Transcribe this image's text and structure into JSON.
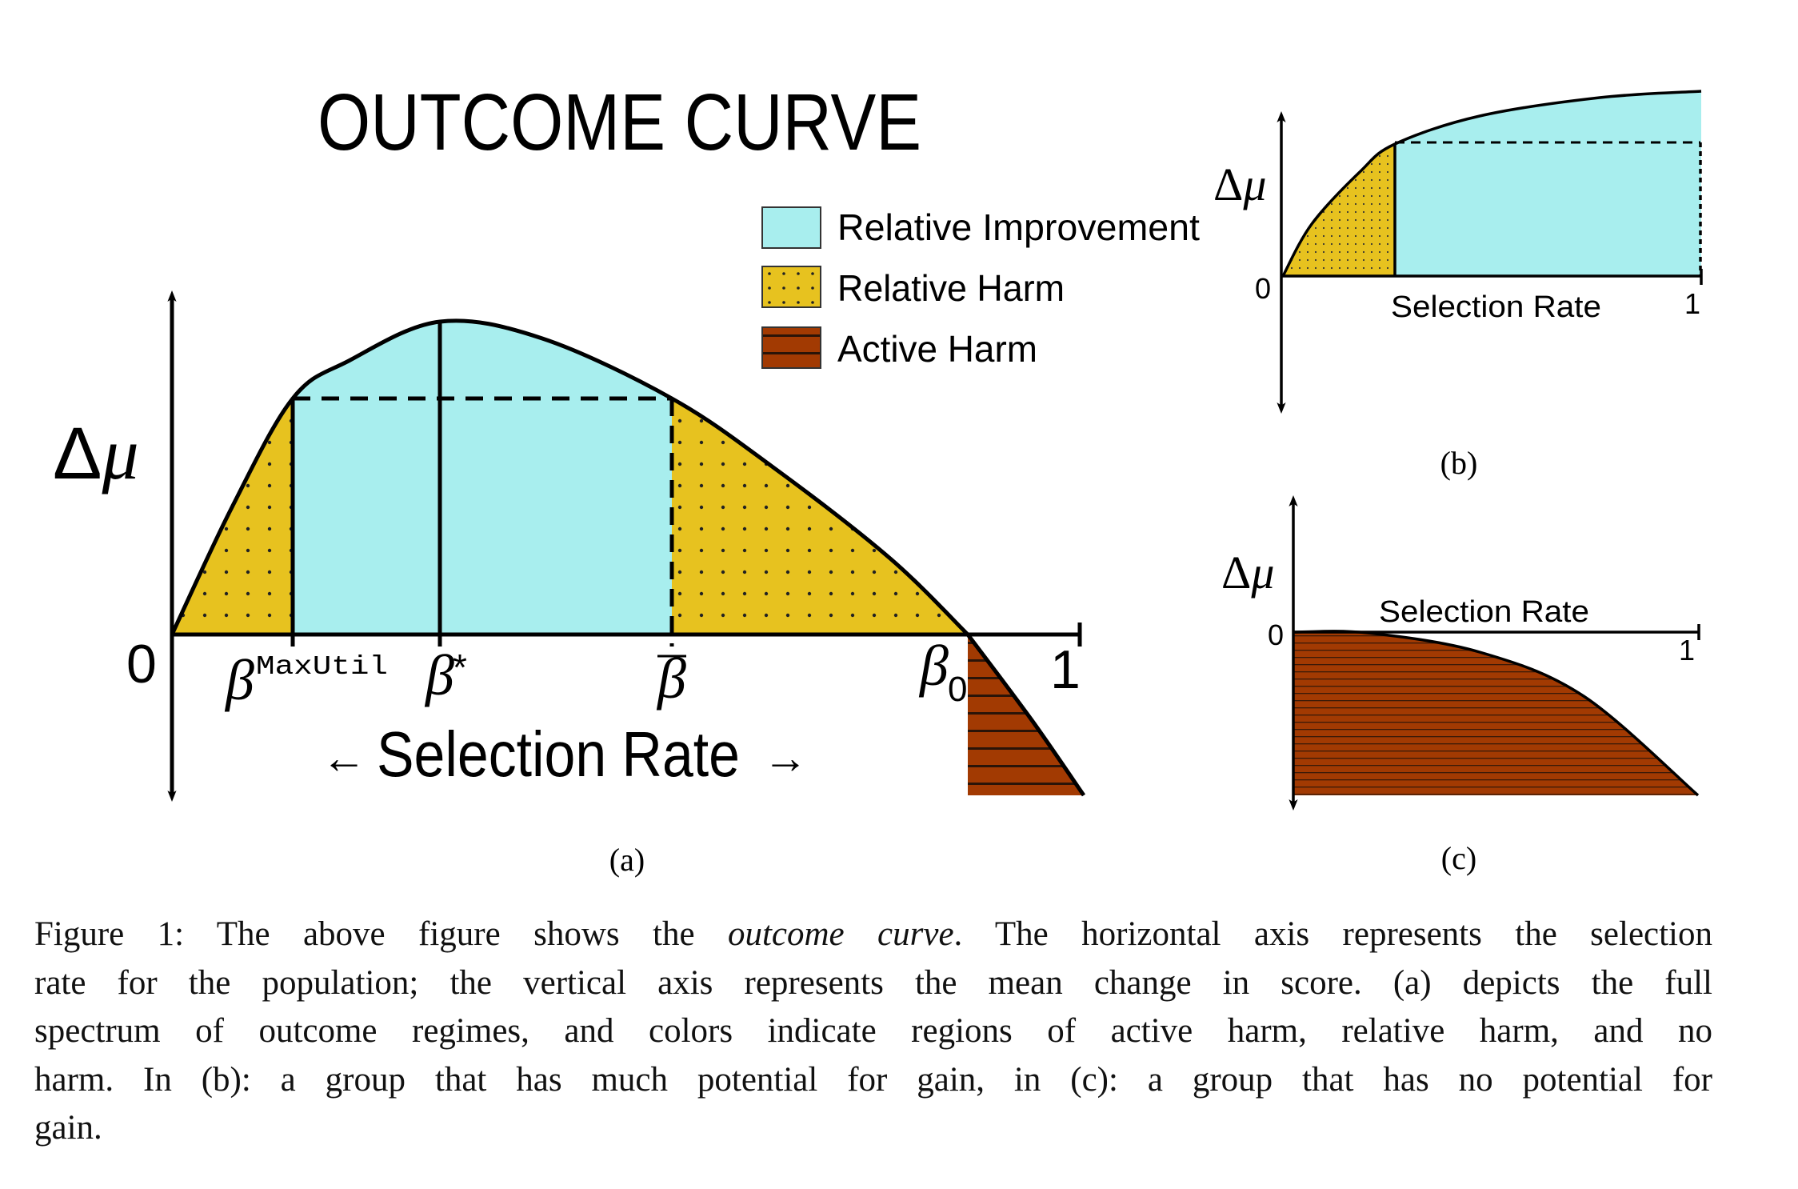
{
  "colors": {
    "relative_improvement": "#a8eeee",
    "relative_harm": "#e7c21f",
    "active_harm": "#a23a02",
    "ink": "#000000"
  },
  "panel_a": {
    "title": "OUTCOME CURVE",
    "y_label_delta": "Δ",
    "y_label_mu": "μ",
    "origin_label": "0",
    "end_label": "1",
    "x_label": "Selection Rate",
    "x_arrow_left": "←",
    "x_arrow_right": "→",
    "beta": "β",
    "maxutil_sup": "MaxUtil",
    "star_sup": "*",
    "zero_sub": "0",
    "legend": [
      {
        "label": "Relative Improvement",
        "pattern": "solid"
      },
      {
        "label": "Relative Harm",
        "pattern": "dots"
      },
      {
        "label": "Active Harm",
        "pattern": "stripes"
      }
    ],
    "sublabel": "(a)"
  },
  "panel_b": {
    "y_label_delta": "Δ",
    "y_label_mu": "μ",
    "origin_label": "0",
    "end_label": "1",
    "x_label": "Selection Rate",
    "sublabel": "(b)"
  },
  "panel_c": {
    "y_label_delta": "Δ",
    "y_label_mu": "μ",
    "origin_label": "0",
    "end_label": "1",
    "x_label": "Selection Rate",
    "sublabel": "(c)"
  },
  "caption": {
    "lines": [
      [
        "Figure 1: The above figure shows the ",
        "outcome curve",
        ". The horizontal axis represents the selection"
      ],
      [
        "rate for the population; the vertical axis represents the mean change in score. (a) depicts the full"
      ],
      [
        "spectrum of outcome regimes, and colors indicate regions of active harm, relative harm, and no"
      ],
      [
        "harm. In (b): a group that has much potential for gain, in (c): a group that has no potential for"
      ],
      [
        "gain."
      ]
    ]
  }
}
